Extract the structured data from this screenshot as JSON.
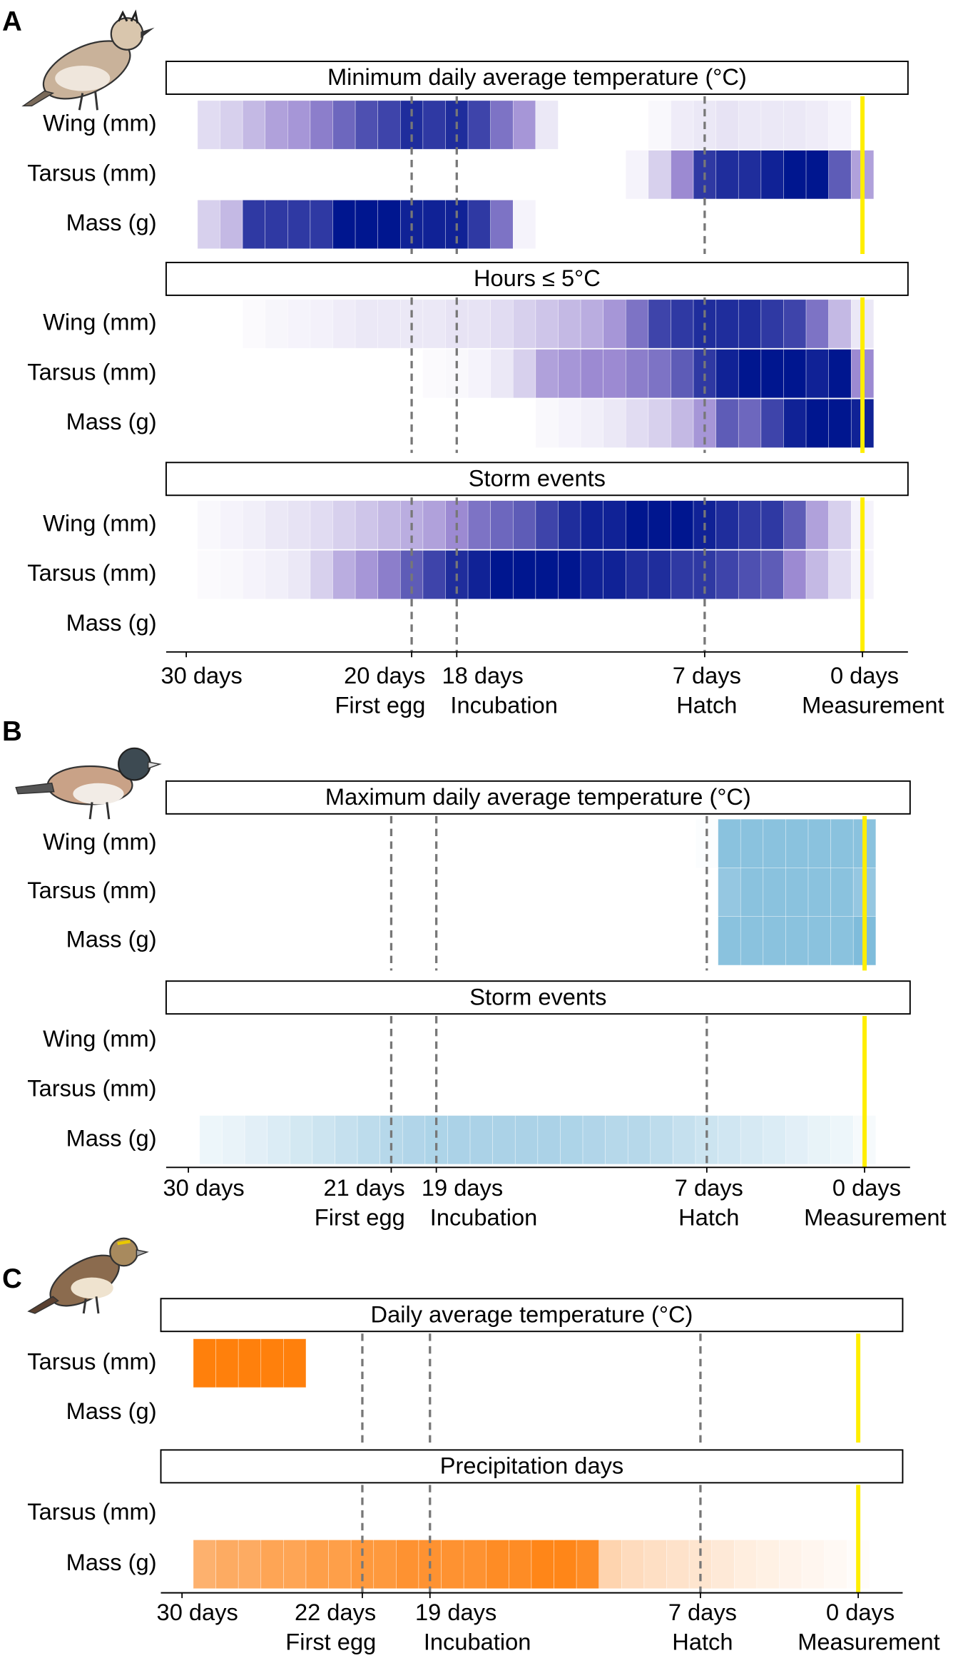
{
  "chart_data": {
    "type": "heatmap",
    "panels": [
      {
        "label": "A",
        "colors": [
          "#ffffff",
          "#9c8ad2",
          "#00168f"
        ],
        "sections": [
          {
            "title": "Minimum daily average temperature (°C)",
            "rows": [
              {
                "name": "Wing (mm)",
                "values": [
                  0.15,
                  0.2,
                  0.3,
                  0.4,
                  0.45,
                  0.55,
                  0.65,
                  0.75,
                  0.8,
                  0.9,
                  0.85,
                  0.9,
                  0.8,
                  0.6,
                  0.45,
                  0.1,
                  null,
                  null,
                  null,
                  null,
                  0.03,
                  0.08,
                  0.1,
                  0.12,
                  0.1,
                  0.1,
                  0.1,
                  0.08,
                  0.05,
                  null
                ]
              },
              {
                "name": "Tarsus (mm)",
                "values": [
                  null,
                  null,
                  null,
                  null,
                  null,
                  null,
                  null,
                  null,
                  null,
                  null,
                  null,
                  null,
                  null,
                  null,
                  null,
                  null,
                  null,
                  null,
                  null,
                  0.05,
                  0.2,
                  0.5,
                  0.85,
                  0.9,
                  0.9,
                  0.95,
                  1,
                  1,
                  0.7,
                  0.4
                ]
              },
              {
                "name": "Mass (g)",
                "values": [
                  0.2,
                  0.3,
                  0.85,
                  0.85,
                  0.85,
                  0.85,
                  1,
                  1,
                  1,
                  0.95,
                  0.95,
                  0.95,
                  0.85,
                  0.6,
                  0.05,
                  null,
                  null,
                  null,
                  null,
                  null,
                  null,
                  null,
                  null,
                  null,
                  null,
                  null,
                  null,
                  null,
                  null,
                  null
                ]
              }
            ]
          },
          {
            "title": "Hours ≤ 5°C",
            "rows": [
              {
                "name": "Wing (mm)",
                "values": [
                  null,
                  null,
                  0.02,
                  0.04,
                  0.05,
                  0.06,
                  0.08,
                  0.1,
                  0.1,
                  0.1,
                  0.1,
                  0.12,
                  0.12,
                  0.15,
                  0.2,
                  0.25,
                  0.3,
                  0.35,
                  0.45,
                  0.6,
                  0.8,
                  0.85,
                  0.9,
                  0.9,
                  0.9,
                  0.85,
                  0.8,
                  0.6,
                  0.3,
                  0.1
                ]
              },
              {
                "name": "Tarsus (mm)",
                "values": [
                  null,
                  null,
                  null,
                  null,
                  null,
                  null,
                  null,
                  null,
                  null,
                  null,
                  0.02,
                  0.03,
                  0.05,
                  0.1,
                  0.2,
                  0.4,
                  0.45,
                  0.5,
                  0.5,
                  0.55,
                  0.6,
                  0.7,
                  0.85,
                  0.95,
                  1,
                  1,
                  1,
                  0.95,
                  1,
                  0.5
                ]
              },
              {
                "name": "Mass (g)",
                "values": [
                  null,
                  null,
                  null,
                  null,
                  null,
                  null,
                  null,
                  null,
                  null,
                  null,
                  null,
                  null,
                  null,
                  null,
                  null,
                  0.03,
                  0.05,
                  0.07,
                  0.1,
                  0.15,
                  0.2,
                  0.3,
                  0.45,
                  0.7,
                  0.65,
                  0.8,
                  0.95,
                  1,
                  1,
                  0.95
                ]
              }
            ]
          },
          {
            "title": "Storm events",
            "rows": [
              {
                "name": "Wing (mm)",
                "values": [
                  0.03,
                  0.05,
                  0.07,
                  0.1,
                  0.12,
                  0.15,
                  0.2,
                  0.25,
                  0.3,
                  0.35,
                  0.4,
                  0.5,
                  0.6,
                  0.65,
                  0.7,
                  0.8,
                  0.9,
                  0.95,
                  0.95,
                  1,
                  1,
                  1,
                  0.95,
                  0.9,
                  0.85,
                  0.85,
                  0.7,
                  0.4,
                  0.2,
                  0.05
                ]
              },
              {
                "name": "Tarsus (mm)",
                "values": [
                  0.02,
                  0.03,
                  0.05,
                  0.07,
                  0.1,
                  0.2,
                  0.35,
                  0.45,
                  0.55,
                  0.7,
                  0.8,
                  0.9,
                  0.95,
                  1,
                  1,
                  1,
                  1,
                  0.95,
                  0.95,
                  0.9,
                  0.9,
                  0.85,
                  0.85,
                  0.8,
                  0.75,
                  0.7,
                  0.5,
                  0.3,
                  0.15,
                  0.05
                ]
              },
              {
                "name": "Mass (g)"
              }
            ]
          }
        ],
        "xticks": [
          {
            "value": 30,
            "label": "30 days"
          },
          {
            "value": 20,
            "label": "20 days"
          },
          {
            "value": 18,
            "label": "18 days"
          },
          {
            "value": 7,
            "label": "7 days"
          },
          {
            "value": 0,
            "label": "0 days"
          }
        ],
        "events": [
          {
            "value": 20,
            "label": "First egg"
          },
          {
            "value": 18,
            "label": "Incubation"
          },
          {
            "value": 7,
            "label": "Hatch"
          },
          {
            "value": 0,
            "label": "Measurement"
          }
        ]
      },
      {
        "label": "B",
        "colors": [
          "#ffffff",
          "#b6d8ea",
          "#7fbcdb"
        ],
        "sections": [
          {
            "title": "Maximum daily average temperature (°C)",
            "rows": [
              {
                "name": "Wing (mm)",
                "values": [
                  null,
                  null,
                  null,
                  null,
                  null,
                  null,
                  null,
                  null,
                  null,
                  null,
                  null,
                  null,
                  null,
                  null,
                  null,
                  null,
                  null,
                  null,
                  null,
                  null,
                  null,
                  null,
                  0.03,
                  0.9,
                  0.9,
                  0.9,
                  0.9,
                  0.9,
                  0.9,
                  0.9
                ]
              },
              {
                "name": "Tarsus (mm)",
                "values": [
                  null,
                  null,
                  null,
                  null,
                  null,
                  null,
                  null,
                  null,
                  null,
                  null,
                  null,
                  null,
                  null,
                  null,
                  null,
                  null,
                  null,
                  null,
                  null,
                  null,
                  null,
                  null,
                  null,
                  0.8,
                  0.9,
                  0.9,
                  0.9,
                  0.9,
                  0.9,
                  0.8
                ]
              },
              {
                "name": "Mass (g)",
                "values": [
                  null,
                  null,
                  null,
                  null,
                  null,
                  null,
                  null,
                  null,
                  null,
                  null,
                  null,
                  null,
                  null,
                  null,
                  null,
                  null,
                  null,
                  null,
                  null,
                  null,
                  null,
                  null,
                  null,
                  0.9,
                  0.9,
                  0.9,
                  0.9,
                  0.9,
                  0.9,
                  1
                ]
              }
            ]
          },
          {
            "title": "Storm events",
            "rows": [
              {
                "name": "Wing (mm)"
              },
              {
                "name": "Tarsus (mm)"
              },
              {
                "name": "Mass (g)",
                "values": [
                  0.12,
                  0.15,
                  0.2,
                  0.25,
                  0.3,
                  0.35,
                  0.4,
                  0.45,
                  0.5,
                  0.55,
                  0.58,
                  0.6,
                  0.6,
                  0.6,
                  0.6,
                  0.6,
                  0.58,
                  0.55,
                  0.5,
                  0.5,
                  0.45,
                  0.4,
                  0.35,
                  0.32,
                  0.28,
                  0.25,
                  0.2,
                  0.16,
                  0.12,
                  0.06
                ]
              }
            ]
          }
        ],
        "xticks": [
          {
            "value": 30,
            "label": "30 days"
          },
          {
            "value": 21,
            "label": "21 days"
          },
          {
            "value": 19,
            "label": "19 days"
          },
          {
            "value": 7,
            "label": "7 days"
          },
          {
            "value": 0,
            "label": "0 days"
          }
        ],
        "events": [
          {
            "value": 21,
            "label": "First egg"
          },
          {
            "value": 19,
            "label": "Incubation"
          },
          {
            "value": 7,
            "label": "Hatch"
          },
          {
            "value": 0,
            "label": "Measurement"
          }
        ]
      },
      {
        "label": "C",
        "colors": [
          "#ffffff",
          "#fdb77a",
          "#ff7a00"
        ],
        "sections": [
          {
            "title": "Daily average temperature (°C)",
            "rows": [
              {
                "name": "Tarsus (mm)",
                "values": [
                  0.95,
                  0.95,
                  0.95,
                  0.95,
                  0.95,
                  null,
                  null,
                  null,
                  null,
                  null,
                  null,
                  null,
                  null,
                  null,
                  null,
                  null,
                  null,
                  null,
                  null,
                  null,
                  null,
                  null,
                  null,
                  null,
                  null,
                  null,
                  null,
                  null,
                  null,
                  null
                ]
              },
              {
                "name": "Mass (g)"
              }
            ]
          },
          {
            "title": "Precipitation days",
            "rows": [
              {
                "name": "Tarsus (mm)"
              },
              {
                "name": "Mass (g)",
                "values": [
                  0.55,
                  0.6,
                  0.6,
                  0.65,
                  0.65,
                  0.7,
                  0.7,
                  0.75,
                  0.75,
                  0.8,
                  0.8,
                  0.8,
                  0.8,
                  0.85,
                  0.85,
                  0.9,
                  0.9,
                  0.85,
                  0.3,
                  0.25,
                  0.22,
                  0.2,
                  0.18,
                  0.15,
                  0.12,
                  0.1,
                  0.08,
                  0.06,
                  0.04,
                  0.02
                ]
              }
            ]
          }
        ],
        "xticks": [
          {
            "value": 30,
            "label": "30 days"
          },
          {
            "value": 22,
            "label": "22 days"
          },
          {
            "value": 19,
            "label": "19 days"
          },
          {
            "value": 7,
            "label": "7 days"
          },
          {
            "value": 0,
            "label": "0 days"
          }
        ],
        "events": [
          {
            "value": 22,
            "label": "First egg"
          },
          {
            "value": 19,
            "label": "Incubation"
          },
          {
            "value": 7,
            "label": "Hatch"
          },
          {
            "value": 0,
            "label": "Measurement"
          }
        ]
      }
    ]
  }
}
